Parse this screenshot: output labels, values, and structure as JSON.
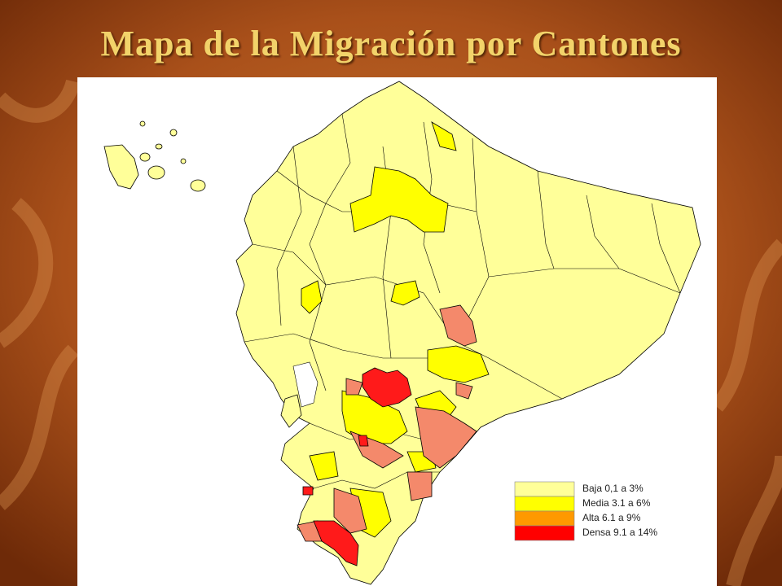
{
  "title": "Mapa de la Migración por Cantones",
  "legend": [
    {
      "label": "Baja 0,1 a 3%",
      "color": "#ffff99"
    },
    {
      "label": "Media 3.1  a 6%",
      "color": "#ffff00"
    },
    {
      "label": "Alta 6.1 a 9%",
      "color": "#ff9900"
    },
    {
      "label": "Densa 9.1 a 14%",
      "color": "#ff0000"
    }
  ]
}
